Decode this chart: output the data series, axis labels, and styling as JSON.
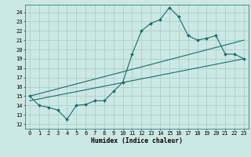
{
  "bg_color": "#cce8e4",
  "grid_color": "#aad0cc",
  "line_color": "#1a6b6b",
  "xlabel": "Humidex (Indice chaleur)",
  "xlim": [
    -0.5,
    23.5
  ],
  "ylim": [
    11.5,
    24.8
  ],
  "yticks": [
    12,
    13,
    14,
    15,
    16,
    17,
    18,
    19,
    20,
    21,
    22,
    23,
    24
  ],
  "xticks": [
    0,
    1,
    2,
    3,
    4,
    5,
    6,
    7,
    8,
    9,
    10,
    11,
    12,
    13,
    14,
    15,
    16,
    17,
    18,
    19,
    20,
    21,
    22,
    23
  ],
  "line1_x": [
    0,
    1,
    2,
    3,
    4,
    5,
    6,
    7,
    8,
    9,
    10,
    11,
    12,
    13,
    14,
    15,
    16,
    17,
    18,
    19,
    20,
    21,
    22,
    23
  ],
  "line1_y": [
    15.0,
    14.0,
    13.8,
    13.5,
    12.5,
    14.0,
    14.1,
    14.5,
    14.5,
    15.5,
    16.5,
    19.5,
    22.0,
    22.8,
    23.2,
    24.5,
    23.5,
    21.5,
    21.0,
    21.2,
    21.5,
    19.5,
    19.5,
    19.0
  ],
  "line2_x": [
    0,
    23
  ],
  "line2_y": [
    15.0,
    21.0
  ],
  "line3_x": [
    0,
    23
  ],
  "line3_y": [
    14.5,
    19.0
  ]
}
